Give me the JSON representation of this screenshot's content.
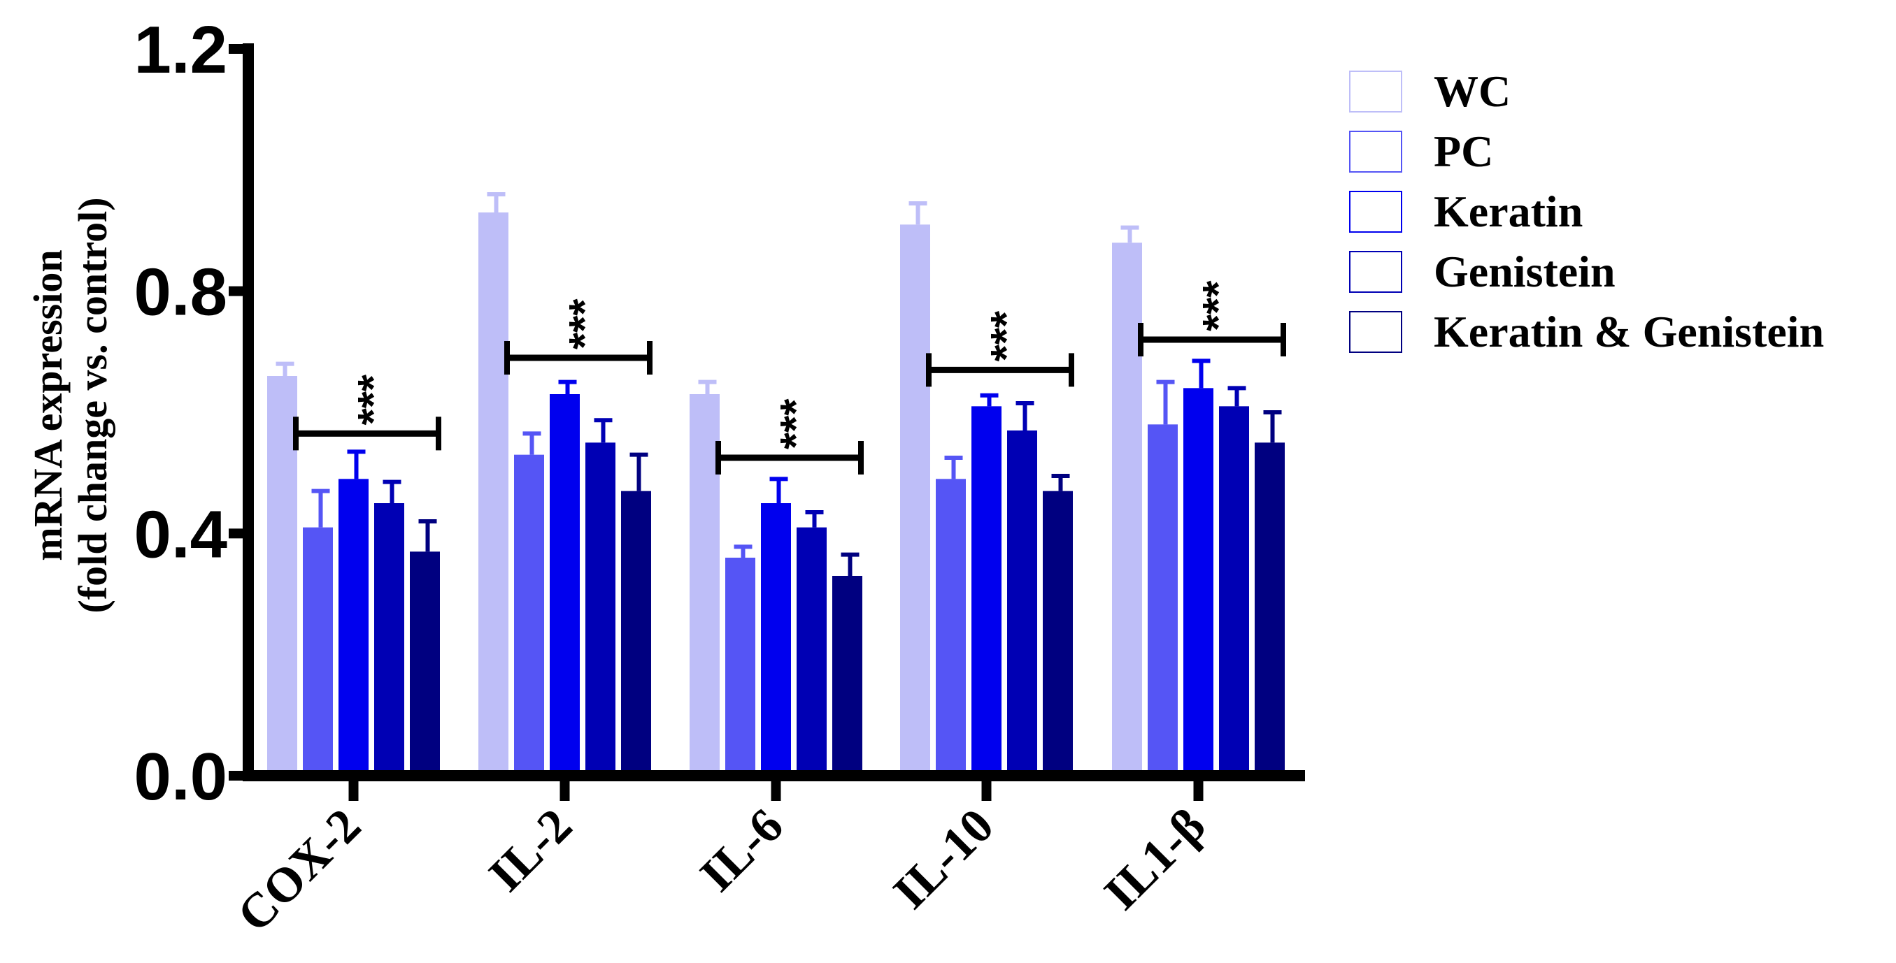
{
  "chart_data": {
    "type": "bar",
    "title": "",
    "xlabel": "",
    "ylabel": [
      "mRNA expression",
      "(fold change vs. control)"
    ],
    "ylim": [
      0,
      1.2
    ],
    "yticks": [
      "0.0",
      "0.4",
      "0.8",
      "1.2"
    ],
    "ytick_values": [
      0,
      0.4,
      0.8,
      1.2
    ],
    "categories": [
      "COX-2",
      "IL-2",
      "IL-6",
      "IL-10",
      "IL1-β"
    ],
    "series": [
      {
        "name": "WC",
        "color": "#bebef8",
        "values": [
          0.66,
          0.93,
          0.63,
          0.91,
          0.88
        ],
        "errors": [
          0.02,
          0.03,
          0.02,
          0.035,
          0.025
        ]
      },
      {
        "name": "PC",
        "color": "#5555f5",
        "values": [
          0.41,
          0.53,
          0.36,
          0.49,
          0.58
        ],
        "errors": [
          0.06,
          0.035,
          0.018,
          0.035,
          0.07
        ]
      },
      {
        "name": "Keratin",
        "color": "#0000ee",
        "values": [
          0.49,
          0.63,
          0.45,
          0.61,
          0.64
        ],
        "errors": [
          0.045,
          0.02,
          0.04,
          0.018,
          0.045
        ]
      },
      {
        "name": "Genistein",
        "color": "#0000b4",
        "values": [
          0.45,
          0.55,
          0.41,
          0.57,
          0.61
        ],
        "errors": [
          0.035,
          0.037,
          0.025,
          0.045,
          0.03
        ]
      },
      {
        "name": "Keratin  & Genistein",
        "color": "#000080",
        "values": [
          0.37,
          0.47,
          0.33,
          0.47,
          0.55
        ],
        "errors": [
          0.05,
          0.06,
          0.035,
          0.025,
          0.05
        ]
      }
    ],
    "significance": [
      {
        "category": "COX-2",
        "label": "***",
        "level": 0.565
      },
      {
        "category": "IL-2",
        "label": "***",
        "level": 0.69
      },
      {
        "category": "IL-6",
        "label": "***",
        "level": 0.525
      },
      {
        "category": "IL-10",
        "label": "***",
        "level": 0.67
      },
      {
        "category": "IL1-β",
        "label": "***",
        "level": 0.72
      }
    ],
    "legend_position": "top-right",
    "grid": false
  }
}
